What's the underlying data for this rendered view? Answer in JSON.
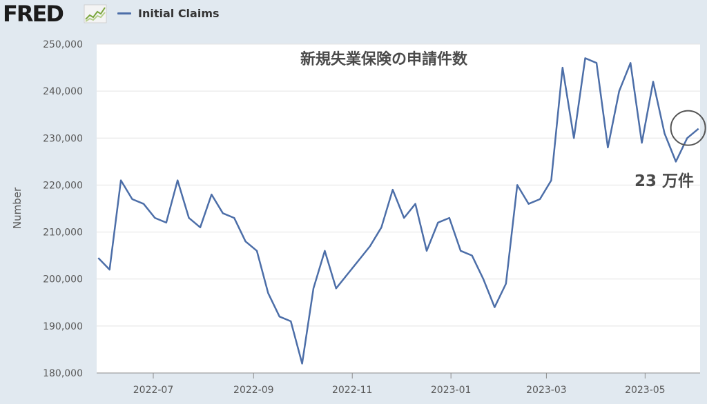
{
  "header": {
    "logo_text": "FRED",
    "legend_label": "Initial Claims"
  },
  "colors": {
    "series": "#4c6ea8",
    "plot_bg": "#ffffff",
    "page_bg": "#e1e9f0",
    "grid": "#e3e3e3"
  },
  "chart_data": {
    "type": "line",
    "title": "新規失業保険の申請件数",
    "ylabel": "Number",
    "xlabel": "",
    "ylim": [
      180000,
      250000
    ],
    "yticks": [
      "180,000",
      "190,000",
      "200,000",
      "210,000",
      "220,000",
      "230,000",
      "240,000",
      "250,000"
    ],
    "xticks": [
      "2022-07",
      "2022-09",
      "2022-11",
      "2023-01",
      "2023-03",
      "2023-05"
    ],
    "grid": true,
    "annotation": "23 万件",
    "series": [
      {
        "name": "Initial Claims",
        "x": [
          "2022-05-28",
          "2022-06-04",
          "2022-06-11",
          "2022-06-18",
          "2022-06-25",
          "2022-07-02",
          "2022-07-09",
          "2022-07-16",
          "2022-07-23",
          "2022-07-30",
          "2022-08-06",
          "2022-08-13",
          "2022-08-20",
          "2022-08-27",
          "2022-09-03",
          "2022-09-10",
          "2022-09-17",
          "2022-09-24",
          "2022-10-01",
          "2022-10-08",
          "2022-10-15",
          "2022-10-22",
          "2022-10-29",
          "2022-11-05",
          "2022-11-12",
          "2022-11-19",
          "2022-11-26",
          "2022-12-03",
          "2022-12-10",
          "2022-12-17",
          "2022-12-24",
          "2022-12-31",
          "2023-01-07",
          "2023-01-14",
          "2023-01-21",
          "2023-01-28",
          "2023-02-04",
          "2023-02-11",
          "2023-02-18",
          "2023-02-25",
          "2023-03-04",
          "2023-03-11",
          "2023-03-18",
          "2023-03-25",
          "2023-04-01",
          "2023-04-08",
          "2023-04-15",
          "2023-04-22",
          "2023-04-29",
          "2023-05-06",
          "2023-05-13",
          "2023-05-20",
          "2023-05-27",
          "2023-06-03"
        ],
        "values": [
          204500,
          202000,
          221000,
          217000,
          216000,
          213000,
          212000,
          221000,
          213000,
          211000,
          218000,
          214000,
          213000,
          208000,
          206000,
          197000,
          192000,
          191000,
          182000,
          198000,
          206000,
          198000,
          201000,
          204000,
          207000,
          211000,
          219000,
          213000,
          216000,
          206000,
          212000,
          213000,
          206000,
          205000,
          200000,
          194000,
          199000,
          220000,
          216000,
          217000,
          221000,
          245000,
          230000,
          247000,
          246000,
          228000,
          240000,
          246000,
          229000,
          242000,
          231000,
          225000,
          230000,
          232000
        ]
      }
    ]
  }
}
